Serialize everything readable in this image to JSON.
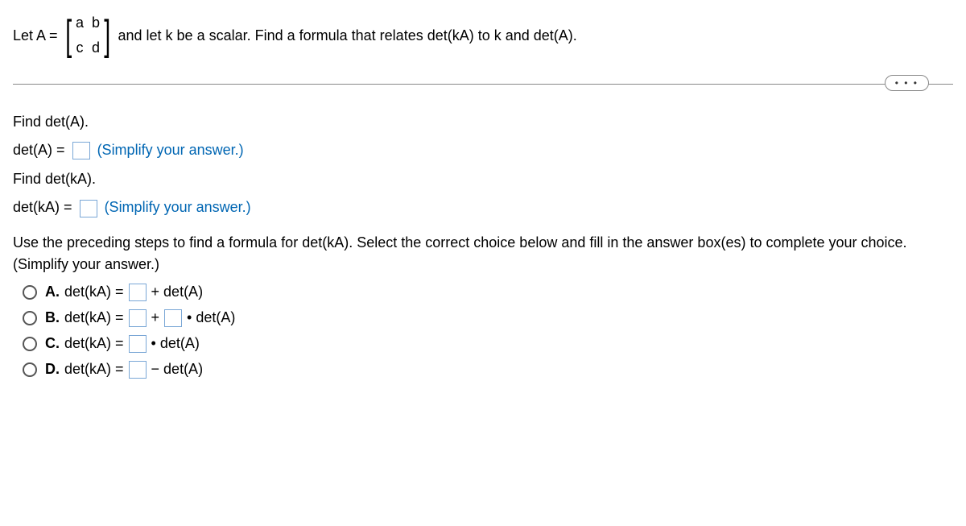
{
  "stem": {
    "lead": "Let A =",
    "matrix": {
      "r1c1": "a",
      "r1c2": "b",
      "r2c1": "c",
      "r2c2": "d"
    },
    "tail": "and let k be a scalar. Find a formula that relates det(kA) to k and det(A)."
  },
  "dots": "• • •",
  "part1": {
    "prompt": "Find det(A).",
    "lhs": "det(A) =",
    "hint": "(Simplify your answer.)"
  },
  "part2": {
    "prompt": "Find det(kA).",
    "lhs": "det(kA) =",
    "hint": "(Simplify your answer.)"
  },
  "instruction": "Use the preceding steps to find a formula for det(kA). Select the correct choice below and fill in the answer box(es) to complete your choice.",
  "instruction_sub": "(Simplify your answer.)",
  "options": {
    "a": {
      "letter": "A.",
      "lhs": "det(kA) =",
      "post1": "+ det(A)"
    },
    "b": {
      "letter": "B.",
      "lhs": "det(kA) =",
      "mid": "+",
      "post2": "• det(A)"
    },
    "c": {
      "letter": "C.",
      "lhs": "det(kA) =",
      "post1": "• det(A)"
    },
    "d": {
      "letter": "D.",
      "lhs": "det(kA) =",
      "post1": "− det(A)"
    }
  },
  "colors": {
    "hint": "#0066b3",
    "input_border": "#7aa7d6",
    "rule": "#888888"
  }
}
